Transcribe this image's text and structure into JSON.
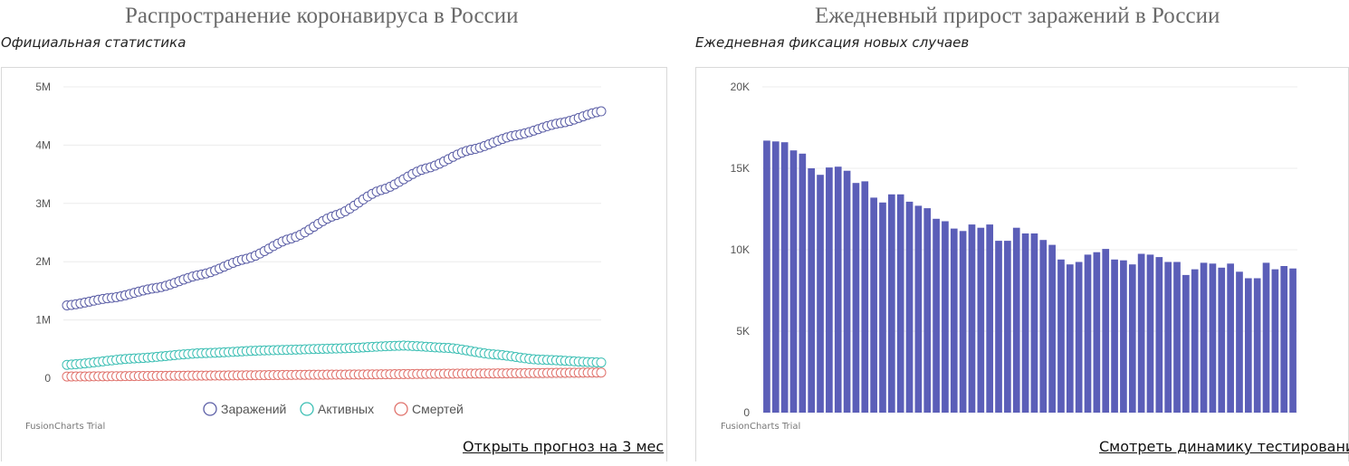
{
  "left": {
    "title": "Распространение коронавируса в России",
    "subtitle": "Официальная статистика",
    "link": "Открыть прогноз на 3 мес",
    "trial": "FusionCharts Trial"
  },
  "right": {
    "title": "Ежедневный прирост заражений в России",
    "subtitle": "Ежедневная фиксация новых случаев",
    "link": "Смотреть динамику тестирований",
    "trial": "FusionCharts Trial"
  },
  "chart_data": [
    {
      "type": "line",
      "title": "Распространение коронавируса в России",
      "subtitle": "Официальная статистика",
      "ylim": [
        0,
        5000000
      ],
      "y_ticks": [
        0,
        1000000,
        2000000,
        3000000,
        4000000,
        5000000
      ],
      "y_tick_labels": [
        "0",
        "1M",
        "2M",
        "3M",
        "4M",
        "5M"
      ],
      "grid": true,
      "legend_position": "bottom",
      "points_per_series": 120,
      "series": [
        {
          "name": "Заражений",
          "color": "#5b5ea6",
          "anchors": [
            [
              0,
              1250000
            ],
            [
              10,
              1380000
            ],
            [
              20,
              1550000
            ],
            [
              30,
              1780000
            ],
            [
              40,
              2050000
            ],
            [
              50,
              2400000
            ],
            [
              60,
              2800000
            ],
            [
              70,
              3230000
            ],
            [
              80,
              3600000
            ],
            [
              90,
              3920000
            ],
            [
              100,
              4170000
            ],
            [
              110,
              4380000
            ],
            [
              119,
              4580000
            ]
          ]
        },
        {
          "name": "Активных",
          "color": "#3cbfb4",
          "anchors": [
            [
              0,
              230000
            ],
            [
              15,
              340000
            ],
            [
              30,
              430000
            ],
            [
              45,
              480000
            ],
            [
              60,
              510000
            ],
            [
              75,
              560000
            ],
            [
              85,
              520000
            ],
            [
              95,
              410000
            ],
            [
              105,
              320000
            ],
            [
              119,
              270000
            ]
          ]
        },
        {
          "name": "Смертей",
          "color": "#e0726c",
          "anchors": [
            [
              0,
              30000
            ],
            [
              30,
              45000
            ],
            [
              60,
              62000
            ],
            [
              90,
              80000
            ],
            [
              119,
              98000
            ]
          ]
        }
      ]
    },
    {
      "type": "bar",
      "title": "Ежедневный прирост заражений в России",
      "subtitle": "Ежедневная фиксация новых случаев",
      "ylim": [
        0,
        20000
      ],
      "y_ticks": [
        0,
        5000,
        10000,
        15000,
        20000
      ],
      "y_tick_labels": [
        "0",
        "5K",
        "10K",
        "15K",
        "20K"
      ],
      "grid": true,
      "color": "#5b5eb8",
      "values": [
        16700,
        16650,
        16600,
        16100,
        15900,
        15000,
        14600,
        15050,
        15100,
        14850,
        14100,
        14200,
        13200,
        12900,
        13400,
        13400,
        12950,
        12700,
        12550,
        11900,
        11750,
        11300,
        11150,
        11550,
        11350,
        11550,
        10550,
        10550,
        11350,
        11000,
        11000,
        10600,
        10300,
        9400,
        9100,
        9250,
        9700,
        9850,
        10050,
        9400,
        9350,
        9100,
        9750,
        9700,
        9550,
        9250,
        9250,
        8450,
        8800,
        9200,
        9150,
        8900,
        9150,
        8650,
        8250,
        8250,
        9200,
        8800,
        9000,
        8850
      ]
    }
  ]
}
